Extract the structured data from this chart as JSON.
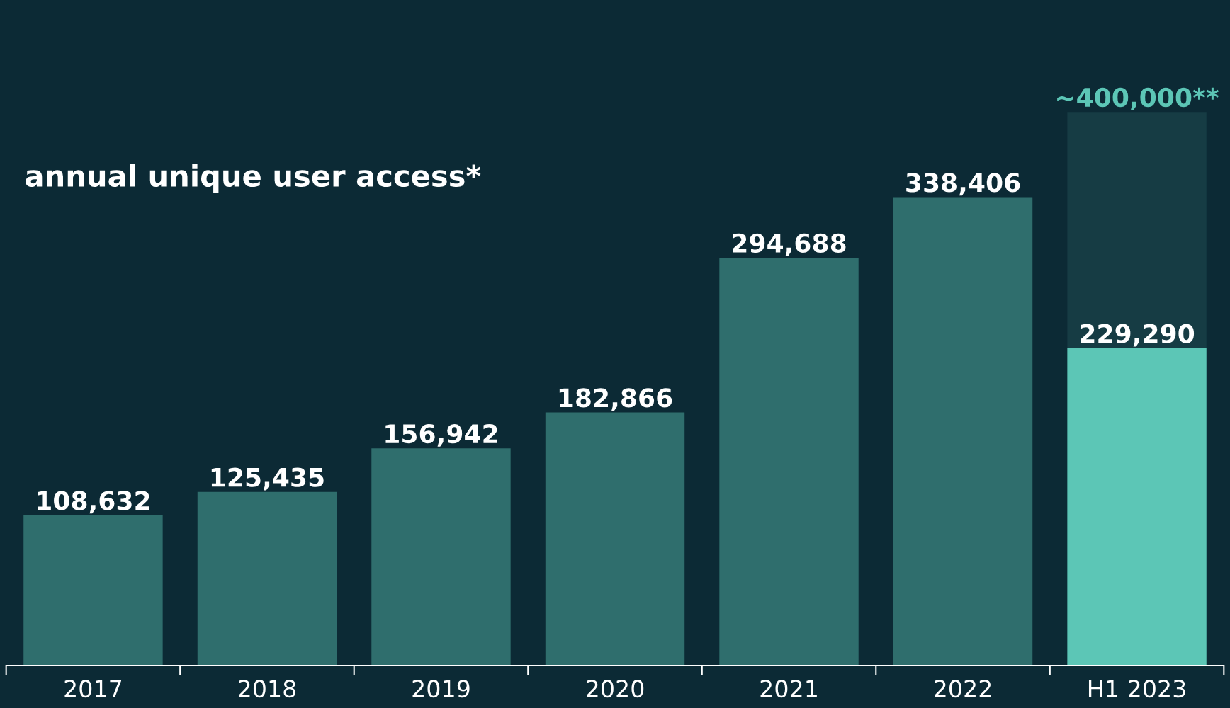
{
  "chart_data": {
    "type": "bar",
    "title": "annual unique user access*",
    "categories": [
      "2017",
      "2018",
      "2019",
      "2020",
      "2021",
      "2022",
      "H1 2023"
    ],
    "stacked": true,
    "series": [
      {
        "colors": [
          "#2f6e6d",
          "#2f6e6d",
          "#2f6e6d",
          "#2f6e6d",
          "#2f6e6d",
          "#2f6e6d",
          "#5cc6b6"
        ],
        "values": [
          108632,
          125435,
          156942,
          182866,
          294688,
          338406,
          229290
        ],
        "value_labels": [
          "108,632",
          "125,435",
          "156,942",
          "182,866",
          "294,688",
          "338,406",
          "229,290"
        ]
      },
      {
        "color": "#163c44",
        "values": [
          null,
          null,
          null,
          null,
          null,
          null,
          170710
        ]
      }
    ],
    "totals": [
      null,
      null,
      null,
      null,
      null,
      null,
      "~400,000**"
    ]
  }
}
